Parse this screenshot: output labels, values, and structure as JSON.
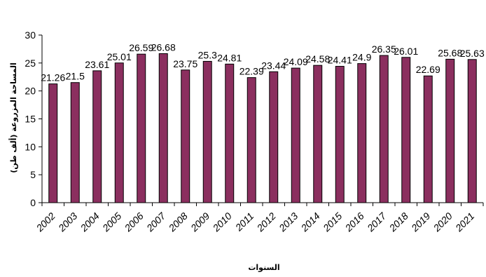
{
  "chart_data": {
    "type": "bar",
    "categories": [
      "2002",
      "2003",
      "2004",
      "2005",
      "2006",
      "2007",
      "2008",
      "2009",
      "2010",
      "2011",
      "2012",
      "2013",
      "2014",
      "2015",
      "2016",
      "2017",
      "2018",
      "2019",
      "2020",
      "2021"
    ],
    "values": [
      21.26,
      21.5,
      23.61,
      25.01,
      26.59,
      26.68,
      23.75,
      25.3,
      24.81,
      22.39,
      23.44,
      24.09,
      24.58,
      24.41,
      24.9,
      26.35,
      26.01,
      22.69,
      25.68,
      25.63
    ],
    "data_labels": [
      "21.26",
      "21.5",
      "23.61",
      "25.01",
      "26.59",
      "26.68",
      "23.75",
      "25.3",
      "24.81",
      "22.39",
      "23.44",
      "24.09",
      "24.58",
      "24.41",
      "24.9",
      "26.35",
      "26.01",
      "22.69",
      "25.68",
      "25.63"
    ],
    "title": "",
    "xlabel": "السنوات",
    "ylabel": "المساحة المزروعة (ألف طن)",
    "ylim": [
      0,
      30
    ],
    "yticks": [
      "0",
      "5",
      "10",
      "15",
      "20",
      "25",
      "30"
    ],
    "grid": false,
    "bar_color": "#8b2f5f",
    "bar_edge_color": "#000000"
  }
}
